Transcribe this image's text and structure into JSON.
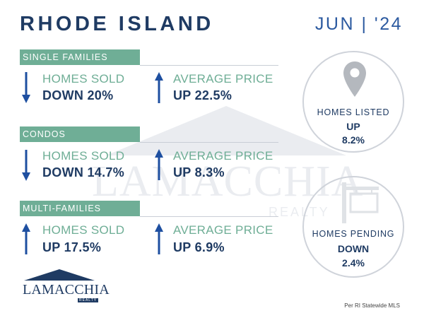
{
  "header": {
    "title": "RHODE ISLAND",
    "date": "JUN | '24"
  },
  "watermark": {
    "text": "LAMACCHIA",
    "sub": "REALTY"
  },
  "sections": [
    {
      "label": "SINGLE FAMILIES",
      "sold": {
        "label": "HOMES SOLD",
        "value": "DOWN 20%",
        "direction": "down"
      },
      "price": {
        "label": "AVERAGE PRICE",
        "value": "UP 22.5%",
        "direction": "up"
      }
    },
    {
      "label": "CONDOS",
      "sold": {
        "label": "HOMES SOLD",
        "value": "DOWN 14.7%",
        "direction": "down"
      },
      "price": {
        "label": "AVERAGE PRICE",
        "value": "UP 8.3%",
        "direction": "up"
      }
    },
    {
      "label": "MULTI-FAMILIES",
      "sold": {
        "label": "HOMES SOLD",
        "value": "UP 17.5%",
        "direction": "up"
      },
      "price": {
        "label": "AVERAGE PRICE",
        "value": "UP 6.9%",
        "direction": "up"
      }
    }
  ],
  "listed": {
    "label": "HOMES LISTED",
    "direction": "UP",
    "percent": "8.2%",
    "icon": "map-pin-icon"
  },
  "pending": {
    "label": "HOMES PENDING",
    "direction": "DOWN",
    "percent": "2.4%",
    "icon": "sale-sign-icon"
  },
  "logo": {
    "text": "LAMACCHIA",
    "sub": "REALTY"
  },
  "source": "Per RI Statewide MLS",
  "colors": {
    "navy": "#1f3b63",
    "green": "#6fae96",
    "arrow": "#1e4fa0",
    "circle_border": "#cfd3da"
  }
}
